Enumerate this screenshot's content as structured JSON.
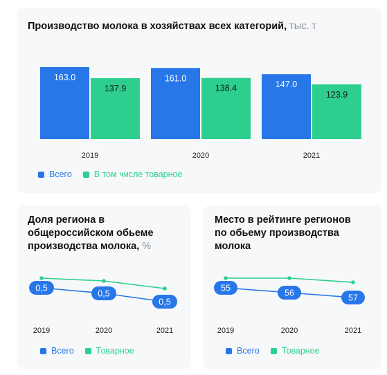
{
  "colors": {
    "total": "#2777e8",
    "commodity": "#2ccf8d",
    "card": "#f7f8f9"
  },
  "top": {
    "title": "Производство молока в хозяйствах всех категорий,",
    "unit": " тыс. т",
    "legend": [
      "Всего",
      "В том числе товарное"
    ]
  },
  "left": {
    "title_lines": [
      "Доля региона в",
      "общероссийском обьеме",
      "производства молока,"
    ],
    "unit": " %",
    "legend": [
      "Всего",
      "Товарное"
    ]
  },
  "right": {
    "title_lines": [
      "Место в рейтинге регионов",
      "по обьему производства",
      "молока"
    ],
    "legend": [
      "Всего",
      "Товарное"
    ]
  },
  "chart_data": [
    {
      "type": "bar",
      "title": "Производство молока в хозяйствах всех категорий, тыс. т",
      "categories": [
        "2019",
        "2020",
        "2021"
      ],
      "series": [
        {
          "name": "Всего",
          "values": [
            163.0,
            161.0,
            147.0
          ],
          "labels": [
            "163.0",
            "161.0",
            "147.0"
          ]
        },
        {
          "name": "В том числе товарное",
          "values": [
            137.9,
            138.4,
            123.9
          ],
          "labels": [
            "137.9",
            "138.4",
            "123.9"
          ]
        }
      ],
      "ylim": [
        0,
        163.0
      ],
      "grid": false,
      "legend": "bottom-left"
    },
    {
      "type": "line",
      "title": "Доля региона в общероссийском обьеме производства молока, %",
      "categories": [
        "2019",
        "2020",
        "2021"
      ],
      "series": [
        {
          "name": "Всего",
          "values": [
            0.5,
            0.5,
            0.5
          ],
          "labels": [
            "0,5",
            "0,5",
            "0,5"
          ],
          "relative_level": [
            0.42,
            0.5,
            0.62
          ]
        },
        {
          "name": "Товарное",
          "relative_level": [
            0.28,
            0.32,
            0.43
          ]
        }
      ],
      "grid": false,
      "legend": "bottom-left"
    },
    {
      "type": "line",
      "title": "Место в рейтинге регионов по обьему производства молока",
      "categories": [
        "2019",
        "2020",
        "2021"
      ],
      "series": [
        {
          "name": "Всего",
          "values": [
            55,
            56,
            57
          ],
          "labels": [
            "55",
            "56",
            "57"
          ]
        },
        {
          "name": "Товарное",
          "relative_level": [
            0.28,
            0.28,
            0.34
          ]
        }
      ],
      "grid": false,
      "legend": "bottom-left"
    }
  ]
}
